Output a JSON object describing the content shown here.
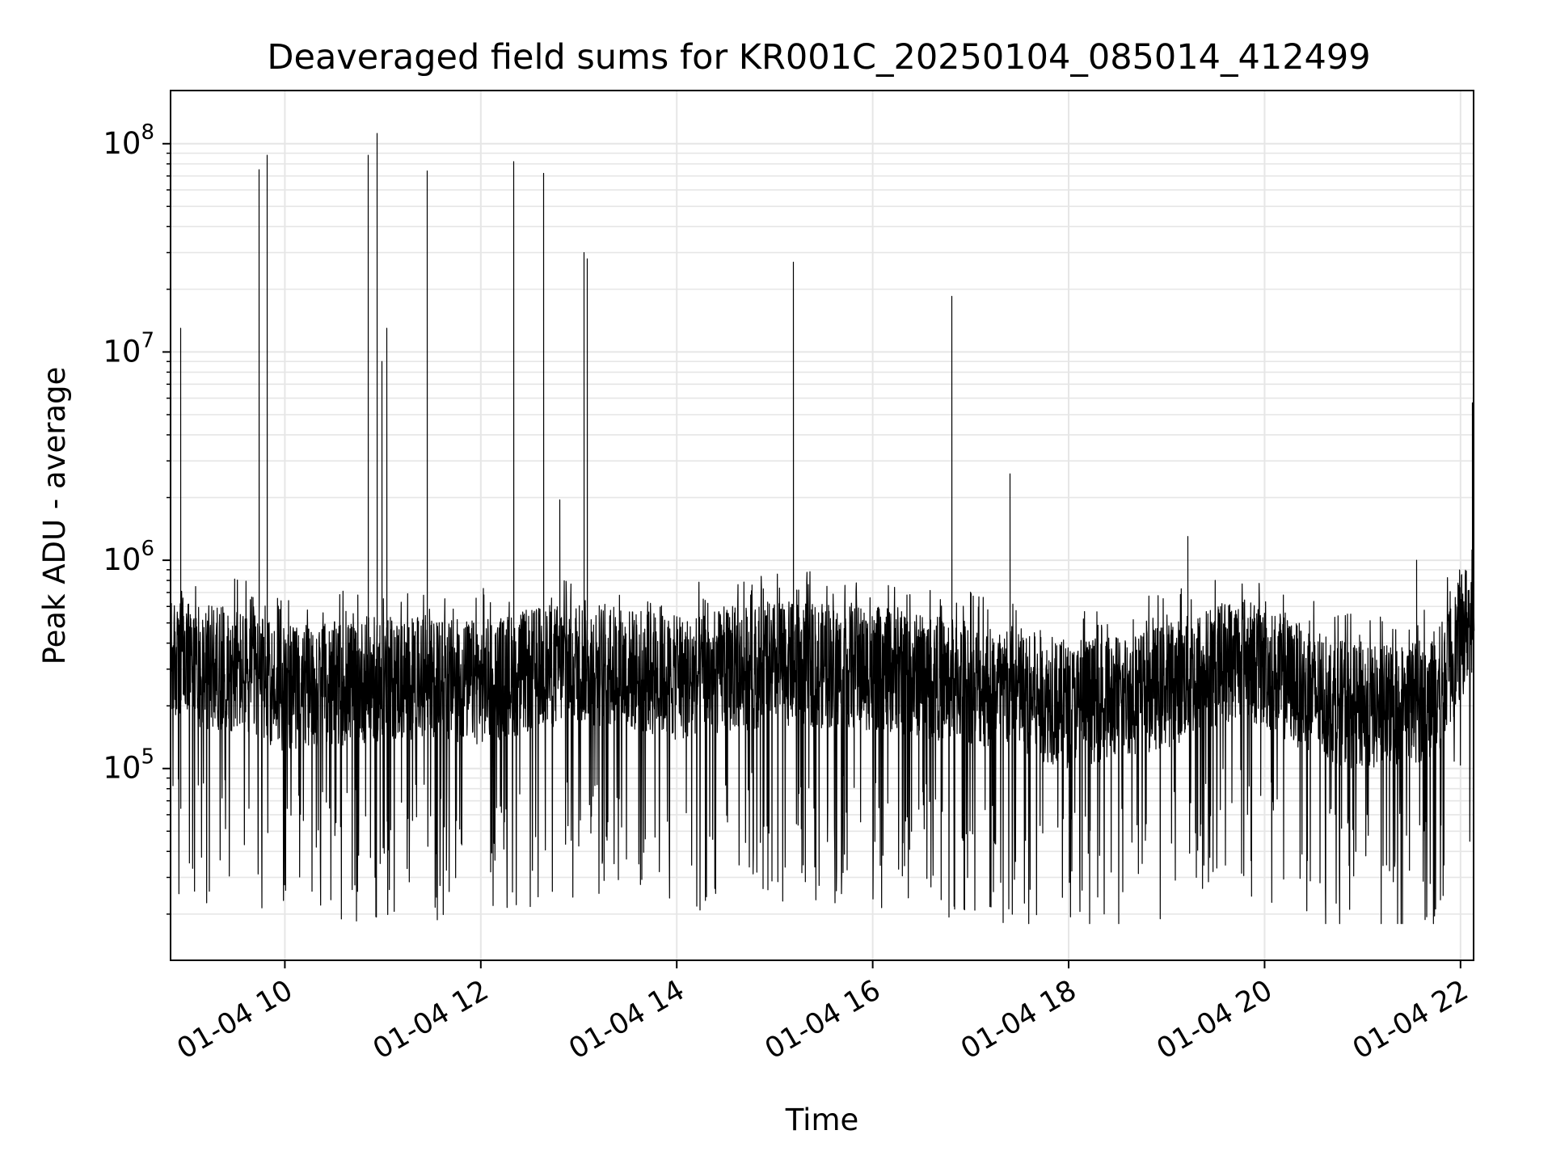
{
  "chart_data": {
    "type": "line",
    "title": "Deaveraged field sums for KR001C_20250104_085014_412499",
    "xlabel": "Time",
    "ylabel": "Peak ADU - average",
    "x_range": [
      "01-04 08:50",
      "01-04 22:08"
    ],
    "x_ticks": [
      {
        "value": "01-04 10:00",
        "label": "01-04 10"
      },
      {
        "value": "01-04 12:00",
        "label": "01-04 12"
      },
      {
        "value": "01-04 14:00",
        "label": "01-04 14"
      },
      {
        "value": "01-04 16:00",
        "label": "01-04 16"
      },
      {
        "value": "01-04 18:00",
        "label": "01-04 18"
      },
      {
        "value": "01-04 20:00",
        "label": "01-04 20"
      },
      {
        "value": "01-04 22:00",
        "label": "01-04 22"
      }
    ],
    "y_scale": "log",
    "ylim": [
      12000,
      180000000
    ],
    "y_ticks": [
      {
        "value": 100000,
        "base": "10",
        "exp": "5"
      },
      {
        "value": 1000000,
        "base": "10",
        "exp": "6"
      },
      {
        "value": 10000000,
        "base": "10",
        "exp": "7"
      },
      {
        "value": 100000000,
        "base": "10",
        "exp": "8"
      }
    ],
    "grid": true,
    "series": [
      {
        "color": "#000000",
        "baseline": [
          {
            "x": "01-04 08:50",
            "y": 320000
          },
          {
            "x": "01-04 09:30",
            "y": 300000
          },
          {
            "x": "01-04 10:00",
            "y": 240000
          },
          {
            "x": "01-04 11:00",
            "y": 270000
          },
          {
            "x": "01-04 12:00",
            "y": 260000
          },
          {
            "x": "01-04 13:00",
            "y": 330000
          },
          {
            "x": "01-04 14:00",
            "y": 270000
          },
          {
            "x": "01-04 15:00",
            "y": 320000
          },
          {
            "x": "01-04 16:00",
            "y": 300000
          },
          {
            "x": "01-04 17:00",
            "y": 260000
          },
          {
            "x": "01-04 18:00",
            "y": 200000
          },
          {
            "x": "01-04 19:00",
            "y": 250000
          },
          {
            "x": "01-04 19:45",
            "y": 350000
          },
          {
            "x": "01-04 20:30",
            "y": 230000
          },
          {
            "x": "01-04 21:00",
            "y": 190000
          },
          {
            "x": "01-04 21:45",
            "y": 220000
          },
          {
            "x": "01-04 22:08",
            "y": 600000
          }
        ],
        "spikes": [
          {
            "x": "01-04 08:56",
            "y": 13000000
          },
          {
            "x": "01-04 09:44",
            "y": 75000000
          },
          {
            "x": "01-04 09:49",
            "y": 88000000
          },
          {
            "x": "01-04 10:51",
            "y": 88000000
          },
          {
            "x": "01-04 10:56",
            "y": 112000000
          },
          {
            "x": "01-04 10:59",
            "y": 9000000
          },
          {
            "x": "01-04 11:02",
            "y": 13000000
          },
          {
            "x": "01-04 11:27",
            "y": 74000000
          },
          {
            "x": "01-04 12:20",
            "y": 82000000
          },
          {
            "x": "01-04 12:38",
            "y": 72000000
          },
          {
            "x": "01-04 12:48",
            "y": 1950000
          },
          {
            "x": "01-04 13:03",
            "y": 30000000
          },
          {
            "x": "01-04 13:05",
            "y": 28000000
          },
          {
            "x": "01-04 15:11",
            "y": 27000000
          },
          {
            "x": "01-04 16:48",
            "y": 18500000
          },
          {
            "x": "01-04 17:24",
            "y": 2600000
          },
          {
            "x": "01-04 19:13",
            "y": 1300000
          },
          {
            "x": "01-04 21:33",
            "y": 1000000
          },
          {
            "x": "01-04 22:07",
            "y": 5700000
          }
        ]
      }
    ]
  }
}
